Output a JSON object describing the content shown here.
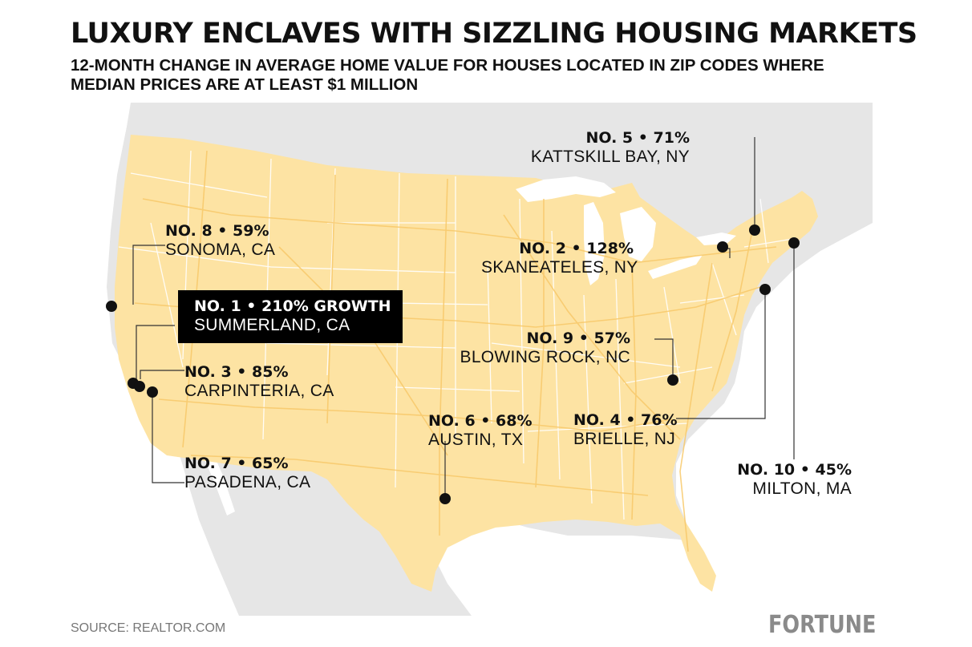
{
  "title": "LUXURY ENCLAVES WITH SIZZLING HOUSING MARKETS",
  "subtitle": "12-MONTH CHANGE IN AVERAGE HOME VALUE FOR HOUSES LOCATED IN ZIP CODES WHERE MEDIAN PRICES ARE AT LEAST $1 MILLION",
  "source": "SOURCE: REALTOR.COM",
  "brand": "FORTUNE",
  "colors": {
    "land_us": "#fde3a3",
    "land_other": "#e6e6e6",
    "water": "#ffffff",
    "marker": "#111111",
    "leader_line": "#333333",
    "highlight_box": "#000000"
  },
  "markers": [
    {
      "rank": 1,
      "headline": "NO. 1 • 210% GROWTH",
      "place": "SUMMERLAND, CA",
      "growth_pct": 210,
      "highlighted": true
    },
    {
      "rank": 2,
      "headline": "NO. 2 • 128%",
      "place": "SKANEATELES, NY",
      "growth_pct": 128
    },
    {
      "rank": 3,
      "headline": "NO. 3 • 85%",
      "place": "CARPINTERIA, CA",
      "growth_pct": 85
    },
    {
      "rank": 4,
      "headline": "NO. 4 • 76%",
      "place": "BRIELLE, NJ",
      "growth_pct": 76
    },
    {
      "rank": 5,
      "headline": "NO. 5 • 71%",
      "place": "KATTSKILL BAY, NY",
      "growth_pct": 71
    },
    {
      "rank": 6,
      "headline": "NO. 6 • 68%",
      "place": "AUSTIN, TX",
      "growth_pct": 68
    },
    {
      "rank": 7,
      "headline": "NO. 7 • 65%",
      "place": "PASADENA, CA",
      "growth_pct": 65
    },
    {
      "rank": 8,
      "headline": "NO. 8 • 59%",
      "place": "SONOMA, CA",
      "growth_pct": 59
    },
    {
      "rank": 9,
      "headline": "NO. 9 • 57%",
      "place": "BLOWING ROCK, NC",
      "growth_pct": 57
    },
    {
      "rank": 10,
      "headline": "NO. 10 • 45%",
      "place": "MILTON, MA",
      "growth_pct": 45
    }
  ]
}
